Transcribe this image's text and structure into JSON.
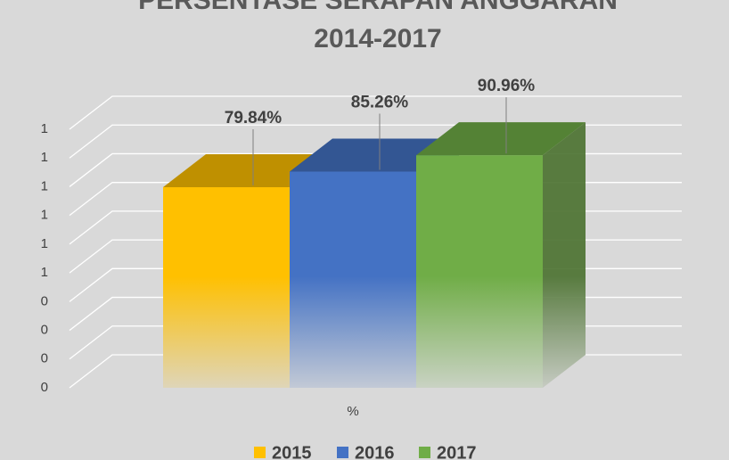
{
  "chart_data": {
    "type": "bar3d",
    "title": [
      "PERSENTASE SERAPAN ANGGARAN",
      "2014-2017"
    ],
    "categories": [
      "%"
    ],
    "series": [
      {
        "name": "2015",
        "color": "#ffc000",
        "values": [
          0.7984
        ],
        "value_labels": [
          "79.84%"
        ]
      },
      {
        "name": "2016",
        "color": "#4472c4",
        "values": [
          0.8526
        ],
        "value_labels": [
          "85.26%"
        ]
      },
      {
        "name": "2017",
        "color": "#70ad47",
        "values": [
          0.9096
        ],
        "value_labels": [
          "90.96%"
        ]
      }
    ],
    "ylim": [
      0.1,
      1.0
    ],
    "yticks": [
      {
        "value": 0.1,
        "label": "0"
      },
      {
        "value": 0.2,
        "label": "0"
      },
      {
        "value": 0.3,
        "label": "0"
      },
      {
        "value": 0.4,
        "label": "0"
      },
      {
        "value": 0.5,
        "label": "1"
      },
      {
        "value": 0.6,
        "label": "1"
      },
      {
        "value": 0.7,
        "label": "1"
      },
      {
        "value": 0.8,
        "label": "1"
      },
      {
        "value": 0.9,
        "label": "1"
      },
      {
        "value": 1.0,
        "label": "1"
      }
    ],
    "grid": true,
    "legend": "bottom"
  }
}
